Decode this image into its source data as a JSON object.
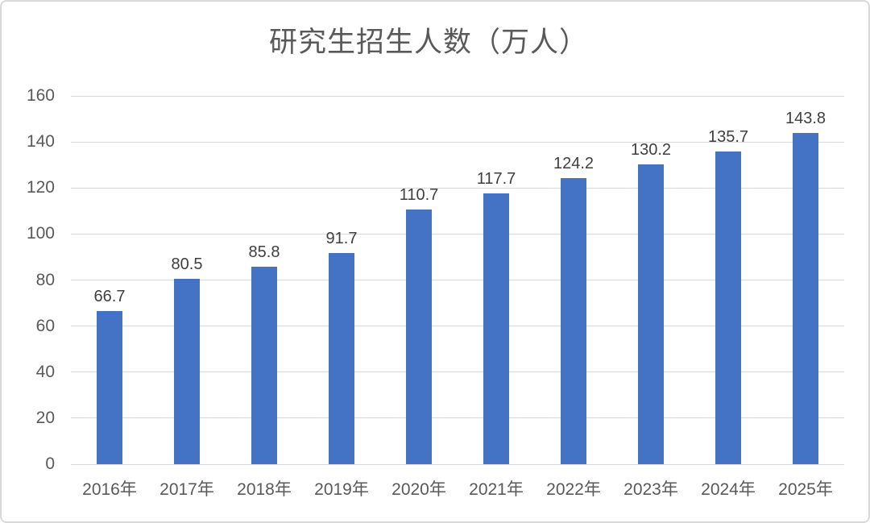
{
  "chart_data": {
    "type": "bar",
    "title": "研究生招生人数（万人）",
    "categories": [
      "2016年",
      "2017年",
      "2018年",
      "2019年",
      "2020年",
      "2021年",
      "2022年",
      "2023年",
      "2024年",
      "2025年"
    ],
    "values": [
      66.7,
      80.5,
      85.8,
      91.7,
      110.7,
      117.7,
      124.2,
      130.2,
      135.7,
      143.8
    ],
    "value_labels": [
      "66.7",
      "80.5",
      "85.8",
      "91.7",
      "110.7",
      "117.7",
      "124.2",
      "130.2",
      "135.7",
      "143.8"
    ],
    "xlabel": "",
    "ylabel": "",
    "ylim": [
      0,
      160
    ],
    "yticks": [
      0,
      20,
      40,
      60,
      80,
      100,
      120,
      140,
      160
    ],
    "grid": "horizontal",
    "legend_position": "none",
    "colors": {
      "bar": "#4472C4",
      "gridline": "#D9D9D9",
      "axis_label": "#595959",
      "data_label": "#3F3F3F",
      "title": "#595959",
      "border": "#D9D9D9",
      "background": "#FFFFFF"
    }
  }
}
